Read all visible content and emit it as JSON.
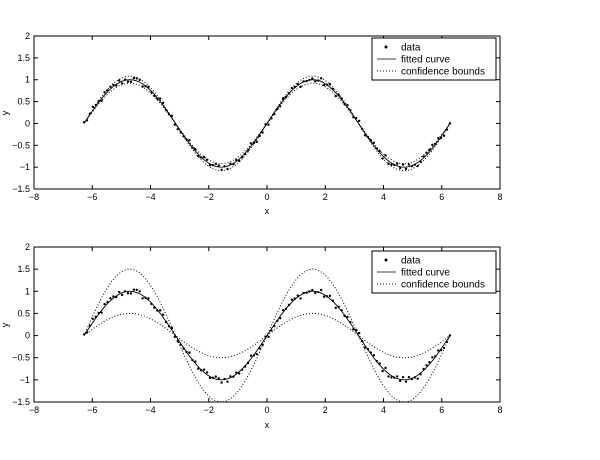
{
  "figure": {
    "background": "#ffffff",
    "line_color": "#000000"
  },
  "chart_data": [
    {
      "type": "line",
      "title": "",
      "xlabel": "x",
      "ylabel": "y",
      "xlim": [
        -8,
        8
      ],
      "ylim": [
        -1.5,
        2
      ],
      "xticks": [
        "−8",
        "−6",
        "−4",
        "−2",
        "0",
        "2",
        "4",
        "6",
        "8"
      ],
      "yticks": [
        "−1.5",
        "−1",
        "−0.5",
        "0",
        "0.5",
        "1",
        "1.5",
        "2"
      ],
      "grid": false,
      "legend": {
        "position": "top-right",
        "entries": [
          "data",
          "fitted curve",
          "confidence bounds"
        ]
      },
      "x_range": [
        -6.28,
        6.28
      ],
      "fitted_curve": {
        "formula": "sin(x)",
        "amplitude": 1.0
      },
      "confidence_bounds": {
        "upper_amplitude": 1.08,
        "lower_amplitude": 0.92
      },
      "data_points_count": 126
    },
    {
      "type": "line",
      "title": "",
      "xlabel": "x",
      "ylabel": "y",
      "xlim": [
        -8,
        8
      ],
      "ylim": [
        -1.5,
        2
      ],
      "xticks": [
        "−8",
        "−6",
        "−4",
        "−2",
        "0",
        "2",
        "4",
        "6",
        "8"
      ],
      "yticks": [
        "−1.5",
        "−1",
        "−0.5",
        "0",
        "0.5",
        "1",
        "1.5",
        "2"
      ],
      "grid": false,
      "legend": {
        "position": "top-right",
        "entries": [
          "data",
          "fitted curve",
          "confidence bounds"
        ]
      },
      "x_range": [
        -6.28,
        6.28
      ],
      "fitted_curve": {
        "formula": "sin(x)",
        "amplitude": 1.0
      },
      "confidence_bounds": {
        "upper_amplitude": 1.5,
        "lower_amplitude": 0.5
      },
      "data_points_count": 126
    }
  ]
}
